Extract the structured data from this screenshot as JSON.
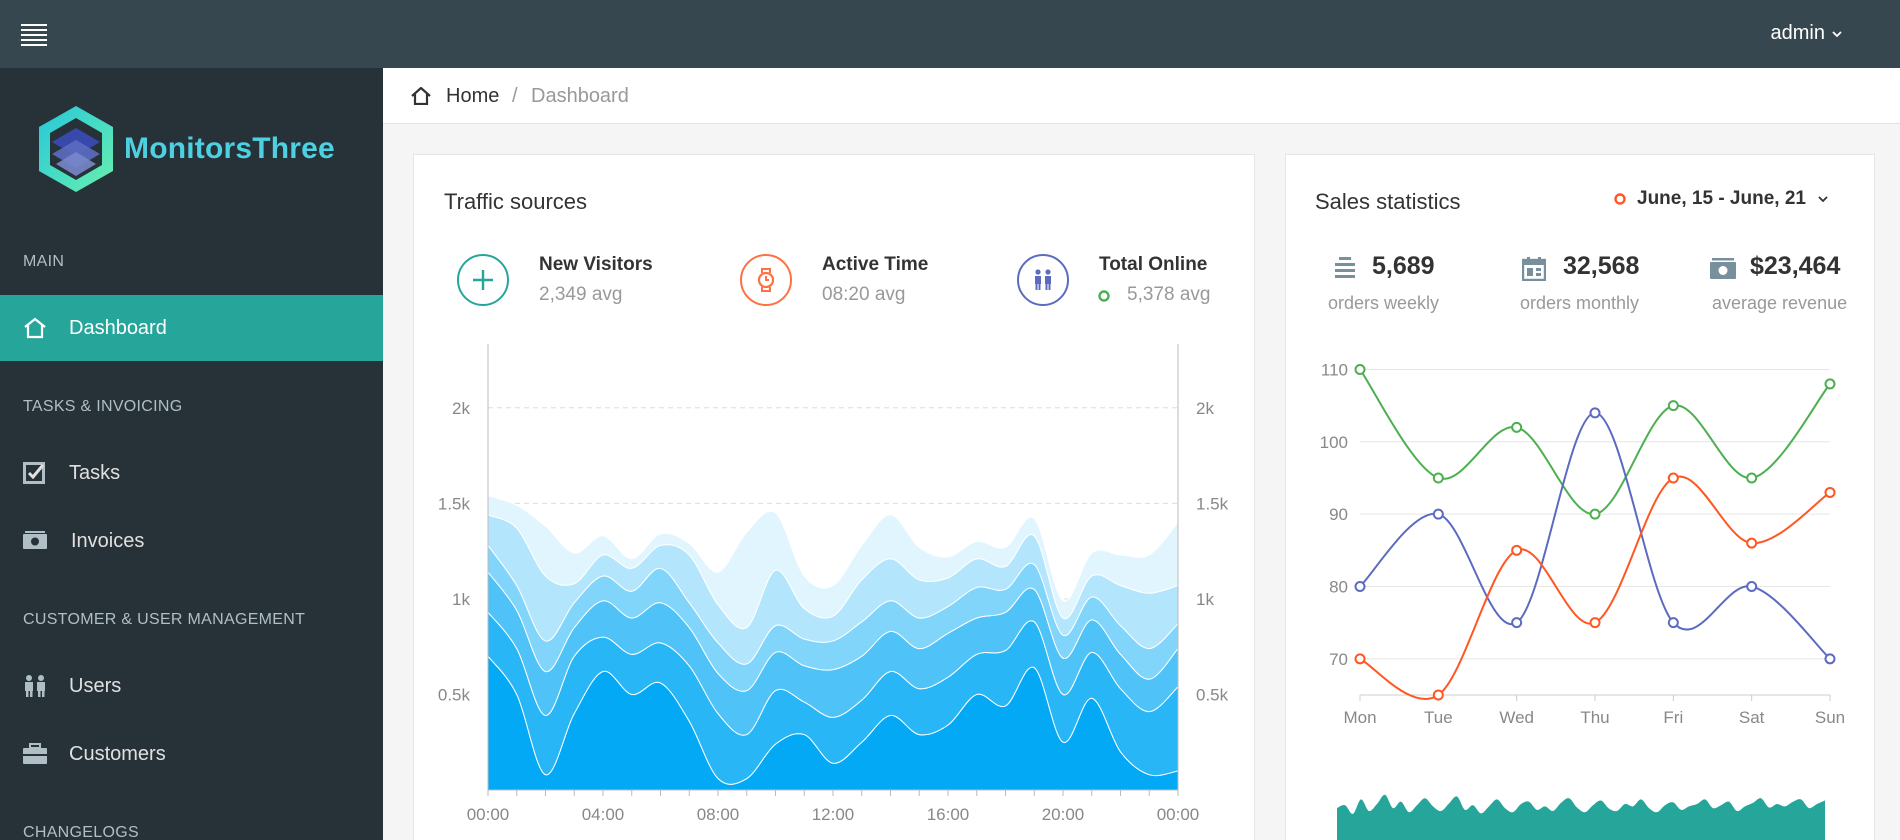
{
  "navbar": {
    "user": "admin"
  },
  "brand": {
    "name": "MonitorsThree"
  },
  "sidebar": {
    "sections": [
      {
        "label": "MAIN"
      },
      {
        "label": "TASKS & INVOICING"
      },
      {
        "label": "CUSTOMER & USER MANAGEMENT"
      },
      {
        "label": "CHANGELOGS"
      }
    ],
    "items": [
      {
        "label": "Dashboard",
        "icon": "home-icon",
        "active": true
      },
      {
        "label": "Tasks",
        "icon": "task-check-icon"
      },
      {
        "label": "Invoices",
        "icon": "money-icon"
      },
      {
        "label": "Users",
        "icon": "users-icon"
      },
      {
        "label": "Customers",
        "icon": "briefcase-icon"
      }
    ]
  },
  "breadcrumb": {
    "home": "Home",
    "separator": "/",
    "current": "Dashboard"
  },
  "traffic": {
    "title": "Traffic sources",
    "kpis": [
      {
        "label": "New Visitors",
        "sub": "2,349 avg",
        "color": "#26a69a",
        "icon": "plus-icon"
      },
      {
        "label": "Active Time",
        "sub": "08:20 avg",
        "color": "#ff7043",
        "icon": "watch-icon"
      },
      {
        "label": "Total Online",
        "sub": "5,378 avg",
        "color": "#5c6bc0",
        "icon": "people-icon",
        "dot_color": "#4caf50"
      }
    ]
  },
  "sales": {
    "title": "Sales statistics",
    "date_range": "June, 15 - June, 21",
    "stats": [
      {
        "value": "5,689",
        "sub": "orders weekly",
        "icon": "list-icon"
      },
      {
        "value": "32,568",
        "sub": "orders monthly",
        "icon": "calendar-icon"
      },
      {
        "value": "$23,464",
        "sub": "average revenue",
        "icon": "cash-icon"
      }
    ]
  },
  "chart_data": [
    {
      "type": "area",
      "stacked": true,
      "x": [
        "00:00",
        "01:00",
        "02:00",
        "03:00",
        "04:00",
        "05:00",
        "06:00",
        "07:00",
        "08:00",
        "09:00",
        "10:00",
        "11:00",
        "12:00",
        "13:00",
        "14:00",
        "15:00",
        "16:00",
        "17:00",
        "18:00",
        "19:00",
        "20:00",
        "21:00",
        "22:00",
        "23:00",
        "00:00"
      ],
      "xticks": [
        "00:00",
        "04:00",
        "08:00",
        "12:00",
        "16:00",
        "20:00",
        "00:00"
      ],
      "yticks": [
        "0.5k",
        "1k",
        "1.5k",
        "2k"
      ],
      "ylim": [
        0,
        2250
      ],
      "grid": true,
      "series": [
        {
          "values": [
            700,
            500,
            80,
            400,
            620,
            500,
            560,
            360,
            60,
            60,
            240,
            290,
            140,
            250,
            390,
            290,
            340,
            500,
            440,
            640,
            250,
            480,
            200,
            80,
            100
          ],
          "color": "#03a9f4"
        },
        {
          "values": [
            230,
            240,
            310,
            300,
            180,
            210,
            210,
            290,
            340,
            230,
            280,
            170,
            240,
            220,
            230,
            240,
            250,
            210,
            290,
            240,
            250,
            240,
            330,
            330,
            440
          ],
          "color": "#29b6f6"
        },
        {
          "values": [
            210,
            200,
            230,
            150,
            190,
            190,
            210,
            200,
            210,
            230,
            200,
            190,
            250,
            230,
            210,
            210,
            230,
            190,
            200,
            170,
            190,
            170,
            180,
            170,
            200
          ],
          "color": "#4fc3f7"
        },
        {
          "values": [
            140,
            130,
            160,
            130,
            130,
            140,
            180,
            130,
            160,
            140,
            140,
            140,
            150,
            180,
            160,
            160,
            140,
            160,
            120,
            130,
            120,
            120,
            150,
            160,
            130
          ],
          "color": "#81d4fa"
        },
        {
          "values": [
            160,
            300,
            340,
            100,
            110,
            120,
            120,
            250,
            200,
            190,
            290,
            160,
            130,
            220,
            220,
            200,
            150,
            150,
            120,
            150,
            90,
            110,
            210,
            290,
            200
          ],
          "color": "#b3e5fc"
        },
        {
          "values": [
            100,
            120,
            260,
            160,
            100,
            50,
            60,
            60,
            170,
            500,
            300,
            170,
            160,
            180,
            230,
            170,
            110,
            90,
            100,
            90,
            90,
            120,
            160,
            200,
            330
          ],
          "color": "#e1f5fe"
        }
      ]
    },
    {
      "type": "line",
      "categories": [
        "Mon",
        "Tue",
        "Wed",
        "Thu",
        "Fri",
        "Sat",
        "Sun"
      ],
      "ylim": [
        65,
        112
      ],
      "yticks": [
        70,
        80,
        90,
        100,
        110
      ],
      "grid": true,
      "series": [
        {
          "values": [
            110,
            95,
            102,
            90,
            105,
            95,
            108
          ],
          "color": "#4caf50"
        },
        {
          "values": [
            80,
            90,
            75,
            104,
            75,
            80,
            70
          ],
          "color": "#5c6bc0"
        },
        {
          "values": [
            70,
            65,
            85,
            75,
            95,
            86,
            93
          ],
          "color": "#ff5722"
        }
      ]
    },
    {
      "type": "area",
      "values": [
        55,
        60,
        45,
        70,
        50,
        62,
        78,
        55,
        66,
        48,
        60,
        72,
        58,
        50,
        63,
        75,
        52,
        60,
        46,
        58,
        70,
        55,
        48,
        62,
        66,
        52,
        58,
        50,
        64,
        72,
        56,
        48,
        60,
        68,
        54,
        50,
        62,
        58,
        70,
        55,
        48,
        60,
        65,
        52,
        58,
        62,
        70,
        55,
        60,
        66,
        50,
        58,
        64,
        72,
        56,
        62,
        58,
        66,
        70,
        55,
        62,
        68
      ],
      "color": "#26a69a",
      "ylim": [
        0,
        100
      ]
    }
  ]
}
